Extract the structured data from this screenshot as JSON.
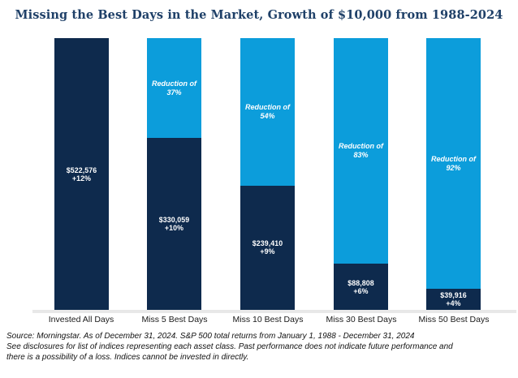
{
  "title": "Missing the Best Days in the Market, Growth of $10,000 from 1988-2024",
  "chart_data": {
    "type": "bar",
    "stacked": true,
    "title": "Missing the Best Days in the Market, Growth of $10,000 from 1988-2024",
    "xlabel": "",
    "ylabel": "",
    "ylim": [
      0,
      522576
    ],
    "grid": false,
    "legend": false,
    "categories": [
      "Invested All Days",
      "Miss 5 Best Days",
      "Miss 10 Best Days",
      "Miss 30 Best Days",
      "Miss 50 Best Days"
    ],
    "series": [
      {
        "name": "Ending value (navy)",
        "values": [
          522576,
          330059,
          239410,
          88808,
          39916
        ]
      },
      {
        "name": "Foregone growth (light blue)",
        "values": [
          0,
          192517,
          283166,
          433768,
          482660
        ]
      }
    ],
    "bars": [
      {
        "category": "Invested All Days",
        "value": 522576,
        "value_label": "$522,576",
        "return_label": "+12%",
        "reduction_line1": "",
        "reduction_line2": ""
      },
      {
        "category": "Miss 5 Best Days",
        "value": 330059,
        "value_label": "$330,059",
        "return_label": "+10%",
        "reduction_line1": "Reduction of",
        "reduction_line2": "37%"
      },
      {
        "category": "Miss 10 Best Days",
        "value": 239410,
        "value_label": "$239,410",
        "return_label": "+9%",
        "reduction_line1": "Reduction of",
        "reduction_line2": "54%"
      },
      {
        "category": "Miss 30 Best Days",
        "value": 88808,
        "value_label": "$88,808",
        "return_label": "+6%",
        "reduction_line1": "Reduction of",
        "reduction_line2": "83%"
      },
      {
        "category": "Miss 50 Best Days",
        "value": 39916,
        "value_label": "$39,916",
        "return_label": "+4%",
        "reduction_line1": "Reduction of",
        "reduction_line2": "92%"
      }
    ]
  },
  "colors": {
    "navy": "#0e2a4d",
    "light_blue": "#0c9ddb",
    "title_blue": "#1f4068",
    "baseline_gray": "#e8e8e8"
  },
  "source": {
    "lines": [
      "Source: Morningstar. As of December 31, 2024. S&P 500 total returns from January 1, 1988 - December 31, 2024",
      "See disclosures for list of indices representing each asset class. Past performance does not indicate future performance and",
      "there is a possibility of a loss. Indices cannot be invested in directly."
    ]
  }
}
